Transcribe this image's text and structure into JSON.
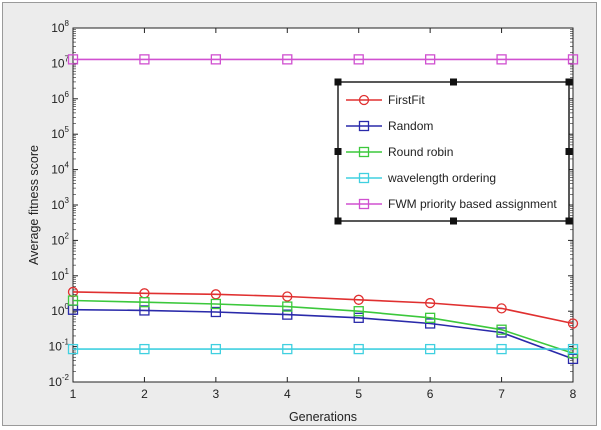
{
  "chart_data": {
    "type": "line",
    "title": "",
    "xlabel": "Generations",
    "ylabel": "Average fitness score",
    "x": [
      1,
      2,
      3,
      4,
      5,
      6,
      7,
      8
    ],
    "xlim": [
      1,
      8
    ],
    "ylim": [
      0.01,
      100000000
    ],
    "yscale": "log",
    "y_tick_labels": [
      "10^-2",
      "10^0",
      "10^2",
      "10^4",
      "10^6",
      "10^8"
    ],
    "x_tick_labels": [
      "1",
      "2",
      "3",
      "4",
      "5",
      "6",
      "7",
      "8"
    ],
    "grid": false,
    "legend_position": "top-right",
    "series": [
      {
        "name": "FirstFit",
        "color": "#e03030",
        "marker": "circle",
        "values": [
          3.5,
          3.2,
          3.0,
          2.6,
          2.1,
          1.7,
          1.2,
          0.45
        ]
      },
      {
        "name": "Random",
        "color": "#2a2aaa",
        "marker": "square",
        "values": [
          1.1,
          1.05,
          0.95,
          0.8,
          0.65,
          0.45,
          0.25,
          0.045
        ]
      },
      {
        "name": "Round robin",
        "color": "#3cc83c",
        "marker": "square",
        "values": [
          2.0,
          1.8,
          1.6,
          1.35,
          1.0,
          0.65,
          0.3,
          0.065
        ]
      },
      {
        "name": "wavelength ordering",
        "color": "#40d0e0",
        "marker": "square",
        "values": [
          0.085,
          0.085,
          0.085,
          0.085,
          0.085,
          0.085,
          0.085,
          0.085
        ]
      },
      {
        "name": "FWM priority based assignment",
        "color": "#d050d0",
        "marker": "square",
        "values": [
          13000000,
          13000000,
          13000000,
          13000000,
          13000000,
          13000000,
          13000000,
          13000000
        ]
      }
    ]
  }
}
